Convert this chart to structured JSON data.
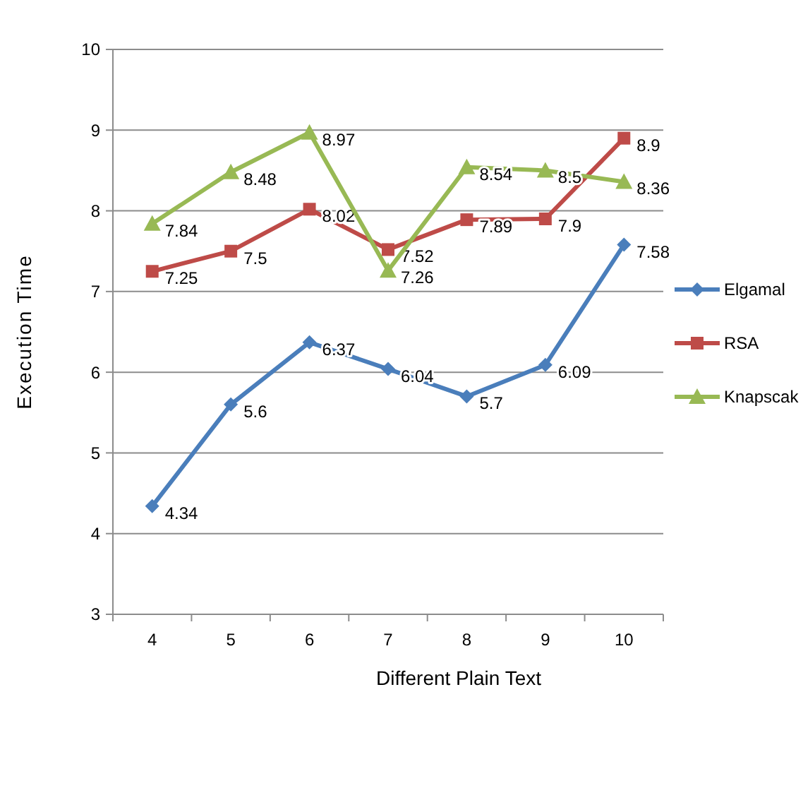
{
  "chart_data": {
    "type": "line",
    "xlabel": "Different Plain Text",
    "ylabel": "Execution Time",
    "categories": [
      "4",
      "5",
      "6",
      "7",
      "8",
      "9",
      "10"
    ],
    "series": [
      {
        "name": "Elgamal",
        "color": "#4a7ebb",
        "marker": "diamond",
        "values": [
          4.34,
          5.6,
          6.37,
          6.04,
          5.7,
          6.09,
          7.58
        ]
      },
      {
        "name": "RSA",
        "color": "#be4b48",
        "marker": "square",
        "values": [
          7.25,
          7.5,
          8.02,
          7.52,
          7.89,
          7.9,
          8.9
        ]
      },
      {
        "name": "Knapscak",
        "color": "#98b954",
        "marker": "triangle",
        "values": [
          7.84,
          8.48,
          8.97,
          7.26,
          8.54,
          8.5,
          8.36
        ]
      }
    ],
    "ylim": [
      3,
      10
    ],
    "yticks": [
      3,
      4,
      5,
      6,
      7,
      8,
      9,
      10
    ],
    "grid": "y",
    "legend": "right",
    "data_labels": true
  }
}
